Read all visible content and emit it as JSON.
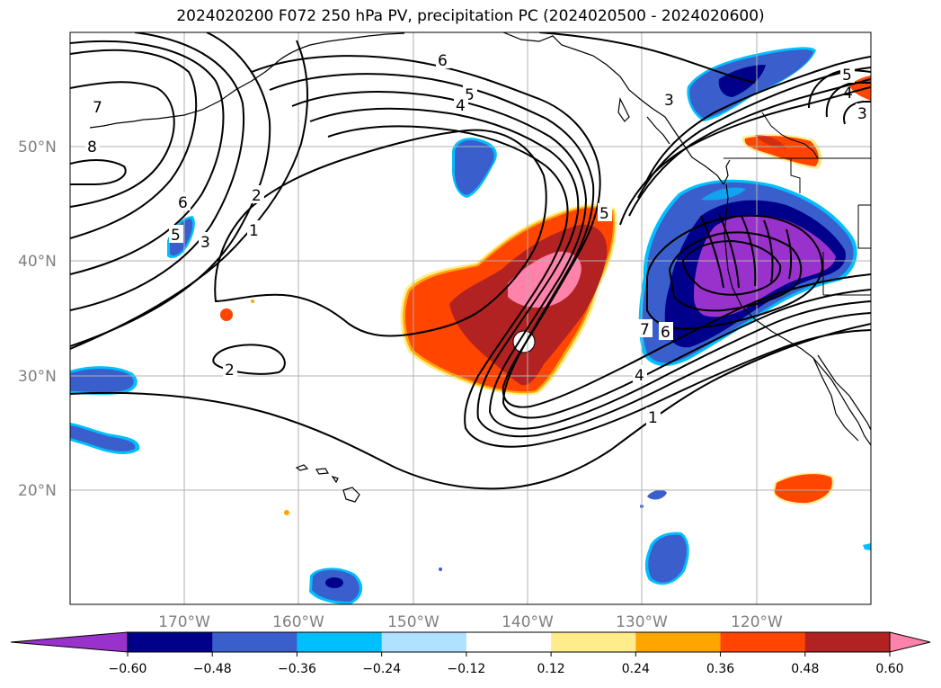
{
  "title": "2024020200 F072 250 hPa PV, precipitation PC (2024020500 - 2024020600)",
  "map": {
    "lat_labels": [
      "50°N",
      "40°N",
      "30°N",
      "20°N"
    ],
    "lon_labels": [
      "170°W",
      "160°W",
      "150°W",
      "140°W",
      "130°W",
      "120°W"
    ],
    "pv_contour_labels": [
      "7",
      "8",
      "6",
      "5",
      "3",
      "2",
      "1",
      "2",
      "6",
      "5",
      "4",
      "3",
      "5",
      "7",
      "6",
      "4",
      "1",
      "5",
      "4",
      "3"
    ]
  },
  "colorbar": {
    "tick_labels": [
      "−0.60",
      "−0.48",
      "−0.36",
      "−0.24",
      "−0.12",
      "0.12",
      "0.24",
      "0.36",
      "0.48",
      "0.60"
    ],
    "colors": [
      "#9932cc",
      "#00008b",
      "#3a5fcd",
      "#00bfff",
      "#b0e2ff",
      "#ffffff",
      "#ffec8b",
      "#ffa500",
      "#ff4500",
      "#b22222",
      "#ff82ab"
    ],
    "extend": "both"
  }
}
